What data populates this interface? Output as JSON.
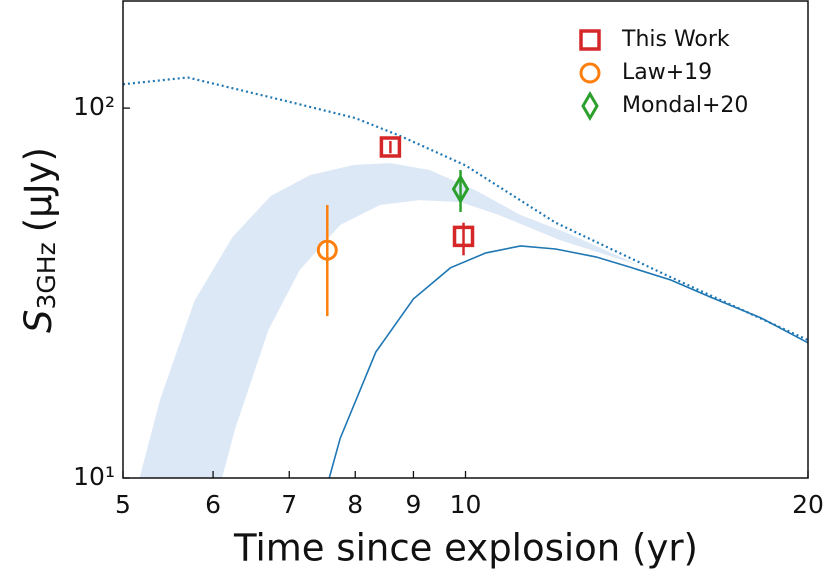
{
  "chart_data": {
    "type": "scatter",
    "xlabel": "Time since explosion (yr)",
    "ylabel": {
      "symbol": "S",
      "subscript": "3GHz",
      "unit": "(μJy)"
    },
    "xscale": "log",
    "yscale": "log",
    "xlim": [
      5,
      20
    ],
    "ylim": [
      10,
      196
    ],
    "xticks": [
      5,
      6,
      7,
      8,
      9,
      10,
      20
    ],
    "yticks": [
      {
        "value": 10,
        "label": "10¹"
      },
      {
        "value": 100,
        "label": "10²"
      }
    ],
    "legend": "upper right",
    "series": [
      {
        "name": "This Work",
        "marker": "square",
        "color": "#d62728",
        "x": [
          8.59,
          9.96
        ],
        "values": [
          78.5,
          45
        ],
        "errors": [
          [
            3,
            3
          ],
          [
            5,
            4
          ]
        ]
      },
      {
        "name": "Law+19",
        "marker": "circle",
        "color": "#ff7f0e",
        "x": [
          7.56
        ],
        "values": [
          41.3
        ],
        "errors": [
          [
            13.9,
            13.4
          ]
        ]
      },
      {
        "name": "Mondal+20",
        "marker": "diamond",
        "color": "#2ca02c",
        "x": [
          9.9
        ],
        "values": [
          60.4
        ],
        "errors": [
          [
            8,
            7.6
          ]
        ]
      }
    ],
    "curves": [
      {
        "style": "dotted",
        "color": "#1f77b4",
        "x": [
          5,
          5.7,
          7,
          8,
          8.77,
          10,
          12,
          15,
          20
        ],
        "values": [
          116,
          121,
          104,
          94,
          84,
          70,
          49,
          35.4,
          23.6
        ]
      },
      {
        "style": "solid",
        "color": "#1f77b4",
        "x": [
          7.59,
          7.76,
          8.34,
          9.0,
          9.7,
          10.42,
          11.18,
          12,
          13.02,
          13.97,
          15.15,
          16.43,
          18.18,
          20
        ],
        "values": [
          10,
          12.8,
          21.9,
          30.5,
          37,
          40.6,
          42.4,
          41.6,
          39.6,
          37.1,
          34.3,
          30.8,
          27.1,
          23.2
        ]
      }
    ],
    "band": {
      "color": "#dde8f6",
      "x_upper": [
        5.17,
        5.39,
        5.78,
        6.24,
        6.74,
        7.3,
        7.97,
        8.59,
        9.3,
        10.2,
        11.18,
        12.3,
        14.2
      ],
      "upper": [
        10,
        16.3,
        30.2,
        44.8,
        57.8,
        65.9,
        70.2,
        71,
        68,
        60,
        51.4,
        45.9,
        37.6
      ],
      "x_lower": [
        6.11,
        6.27,
        6.71,
        7.15,
        7.76,
        8.41,
        9.11,
        9.9,
        10.7,
        12.1,
        14.2
      ],
      "lower": [
        10,
        13.5,
        25.1,
        36.5,
        48.3,
        54.7,
        56.4,
        55.7,
        51.4,
        44,
        37.6
      ]
    }
  }
}
